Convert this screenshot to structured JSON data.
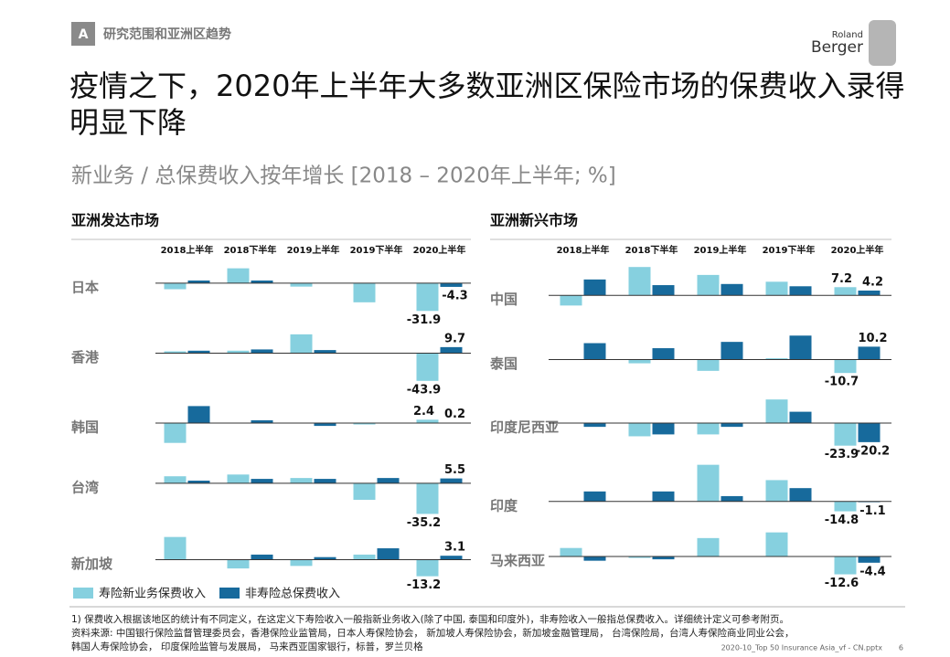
{
  "section": {
    "badge": "A",
    "label": "研究范围和亚洲区趋势"
  },
  "logo": [
    "Roland",
    "Berger"
  ],
  "title": "疫情之下，2020年上半年大多数亚洲区保险市场的保费收入录得明显下降",
  "subtitle": "新业务 / 总保费收入按年增长 [2018 – 2020年上半年; %]",
  "legend": [
    {
      "name": "寿险新业务保费收入",
      "color": "#86d0df"
    },
    {
      "name": "非寿险总保费收入",
      "color": "#176a9c"
    }
  ],
  "chart_data": [
    {
      "type": "bar",
      "title": "亚洲发达市场",
      "categories": [
        "2018上半年",
        "2018下半年",
        "2019上半年",
        "2019下半年",
        "2020上半年"
      ],
      "panels": [
        {
          "name": "日本",
          "ylim": [
            -40,
            25
          ],
          "values": [
            [
              -7,
              17,
              -4,
              -22,
              -31.9
            ],
            [
              3,
              3,
              0,
              0,
              -4.3
            ]
          ]
        },
        {
          "name": "香港",
          "ylim": [
            -50,
            40
          ],
          "values": [
            [
              3,
              4,
              30,
              0,
              -43.9
            ],
            [
              4,
              6,
              5,
              0,
              9.7
            ]
          ]
        },
        {
          "name": "韩国",
          "ylim": [
            -20,
            20
          ],
          "values": [
            [
              -14,
              0,
              0,
              -1,
              2.4
            ],
            [
              12,
              2,
              -2,
              0,
              0.2
            ]
          ]
        },
        {
          "name": "台湾",
          "ylim": [
            -40,
            25
          ],
          "values": [
            [
              8,
              10,
              6,
              -19,
              -35.2
            ],
            [
              3,
              5,
              5,
              6,
              5.5
            ]
          ]
        },
        {
          "name": "新加坡",
          "ylim": [
            -20,
            25
          ],
          "values": [
            [
              18,
              -7,
              -5,
              4,
              -13.2
            ],
            [
              0,
              4,
              2,
              9,
              3.1
            ]
          ]
        }
      ]
    },
    {
      "type": "bar",
      "title": "亚洲新兴市场",
      "categories": [
        "2018上半年",
        "2018下半年",
        "2019上半年",
        "2019下半年",
        "2020上半年"
      ],
      "panels": [
        {
          "name": "中国",
          "ylim": [
            -20,
            30
          ],
          "values": [
            [
              -9,
              25,
              18,
              12,
              7.2
            ],
            [
              14,
              9,
              10,
              8,
              4.2
            ]
          ]
        },
        {
          "name": "泰国",
          "ylim": [
            -20,
            25
          ],
          "values": [
            [
              0,
              -3,
              -9,
              1,
              -10.7
            ],
            [
              13,
              9,
              14,
              19,
              10.2
            ]
          ]
        },
        {
          "name": "印度尼西亚",
          "ylim": [
            -30,
            30
          ],
          "values": [
            [
              0,
              -14,
              -12,
              25,
              -23.9
            ],
            [
              -4,
              -12,
              -4,
              12,
              -20.2
            ]
          ]
        },
        {
          "name": "印度",
          "ylim": [
            -25,
            60
          ],
          "values": [
            [
              0,
              0,
              55,
              32,
              -14.8
            ],
            [
              15,
              15,
              8,
              20,
              -1.1
            ]
          ]
        },
        {
          "name": "马来西亚",
          "ylim": [
            -20,
            20
          ],
          "values": [
            [
              6,
              -1,
              13,
              17,
              -12.6
            ],
            [
              -3,
              -2,
              0,
              0,
              -4.4
            ]
          ]
        }
      ]
    }
  ],
  "notes": [
    "1) 保费收入根据该地区的统计有不同定义，在这定义下寿险收入一般指新业务收入(除了中国, 泰国和印度外)，非寿险收入一般指总保费收入。详细统计定义可参考附页。",
    "资料来源:   中国银行保险监督管理委员会，香港保险业监管局，日本人寿保险协会， 新加坡人寿保险协会，新加坡金融管理局， 台湾保险局，台湾人寿保险商业同业公会，",
    "韩国人寿保险协会， 印度保险监管与发展局， 马来西亚国家银行，标普，罗兰贝格"
  ],
  "footer": {
    "file": "2020-10_Top 50 Insurance Asia_vf - CN.pptx",
    "page": "6"
  }
}
